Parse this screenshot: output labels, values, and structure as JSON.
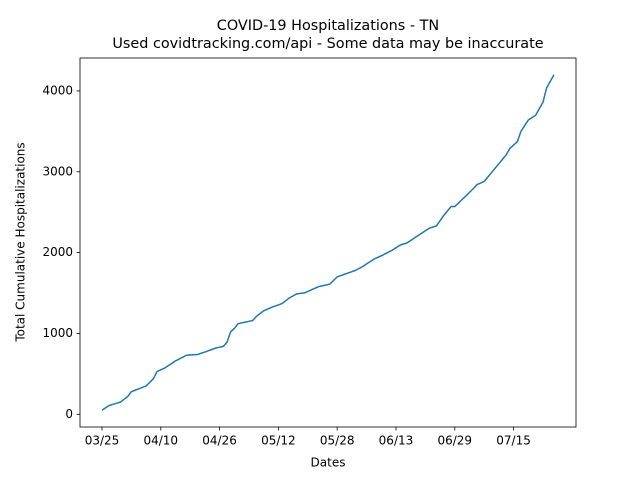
{
  "chart_data": {
    "type": "line",
    "title": "COVID-19 Hospitalizations - TN",
    "subtitle": "Used covidtracking.com/api - Some data may be inaccurate",
    "x_label": "Dates",
    "y_label": "Total Cumulative Hospitalizations",
    "categories": [
      "03/25",
      null,
      null,
      null,
      null,
      null,
      null,
      null,
      null,
      null,
      null,
      null,
      null,
      null,
      null,
      null,
      "04/10",
      null,
      null,
      null,
      null,
      null,
      null,
      null,
      null,
      null,
      null,
      null,
      null,
      null,
      null,
      null,
      "04/26",
      null,
      null,
      null,
      null,
      null,
      null,
      null,
      null,
      null,
      null,
      null,
      null,
      null,
      null,
      null,
      "05/12",
      null,
      null,
      null,
      null,
      null,
      null,
      null,
      null,
      null,
      null,
      null,
      null,
      null,
      null,
      null,
      "05/28",
      null,
      null,
      null,
      null,
      null,
      null,
      null,
      null,
      null,
      null,
      null,
      null,
      null,
      null,
      null,
      "06/13",
      null,
      null,
      null,
      null,
      null,
      null,
      null,
      null,
      null,
      null,
      null,
      null,
      null,
      null,
      null,
      "06/29",
      null,
      null,
      null,
      null,
      null,
      null,
      null,
      null,
      null,
      null,
      null,
      null,
      null,
      null,
      null,
      "07/15",
      null,
      null,
      null,
      null,
      null,
      null,
      null,
      null,
      null,
      null,
      null
    ],
    "series": [
      {
        "color": "#1f77b4",
        "values": [
          50,
          80,
          110,
          123,
          137,
          150,
          185,
          220,
          280,
          297,
          315,
          332,
          350,
          395,
          440,
          530,
          550,
          570,
          600,
          630,
          660,
          683,
          707,
          730,
          733,
          737,
          740,
          755,
          770,
          787,
          803,
          820,
          830,
          840,
          890,
          1020,
          1060,
          1120,
          1130,
          1140,
          1150,
          1160,
          1210,
          1245,
          1280,
          1300,
          1320,
          1337,
          1353,
          1370,
          1405,
          1440,
          1465,
          1490,
          1495,
          1500,
          1520,
          1540,
          1560,
          1580,
          1590,
          1600,
          1610,
          1655,
          1700,
          1716,
          1732,
          1748,
          1764,
          1780,
          1805,
          1830,
          1860,
          1890,
          1920,
          1940,
          1960,
          1983,
          2007,
          2030,
          2060,
          2090,
          2105,
          2120,
          2150,
          2180,
          2210,
          2240,
          2270,
          2300,
          2315,
          2330,
          2395,
          2460,
          2515,
          2570,
          2570,
          2613,
          2657,
          2700,
          2745,
          2790,
          2840,
          2860,
          2880,
          2935,
          2990,
          3045,
          3100,
          3155,
          3210,
          3290,
          3330,
          3370,
          3500,
          3570,
          3640,
          3670,
          3700,
          3780,
          3860,
          4040,
          4120,
          4200
        ]
      }
    ],
    "ylim": [
      -157.5,
      4407.5
    ],
    "yticks": [
      0,
      1000,
      2000,
      3000,
      4000
    ],
    "grid": false
  }
}
